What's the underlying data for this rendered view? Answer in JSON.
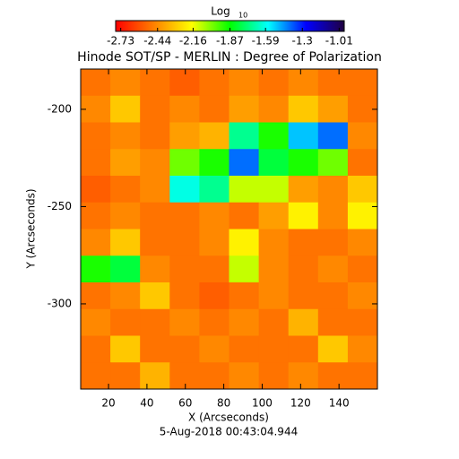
{
  "chart_data": {
    "type": "heatmap",
    "title": "Hinode SOT/SP - MERLIN : Degree of Polarization",
    "x_label": "X (Arcseconds)",
    "y_label": "Y (Arcseconds)",
    "footer": "5-Aug-2018 00:43:04.944",
    "colorbar_title": "Log",
    "colorbar_title_subscript": "10",
    "colormap": [
      "#ff0000",
      "#ff8000",
      "#ffff00",
      "#00ff00",
      "#00ffff",
      "#0000ff",
      "#200040"
    ],
    "clim": [
      -2.77,
      -0.97
    ],
    "cticks": [
      -2.73,
      -2.44,
      -2.16,
      -1.87,
      -1.59,
      -1.3,
      -1.01
    ],
    "xlim": [
      5.5,
      160
    ],
    "xticks": [
      20,
      40,
      60,
      80,
      100,
      120,
      140
    ],
    "ylim": [
      -343.8,
      -179.3
    ],
    "yticks": [
      -200,
      -250,
      -300
    ],
    "z": [
      [
        -2.5,
        -2.45,
        -2.5,
        -2.55,
        -2.5,
        -2.45,
        -2.5,
        -2.45,
        -2.5,
        -2.5
      ],
      [
        -2.45,
        -2.3,
        -2.5,
        -2.45,
        -2.5,
        -2.4,
        -2.45,
        -2.3,
        -2.4,
        -2.5
      ],
      [
        -2.5,
        -2.45,
        -2.5,
        -2.4,
        -2.35,
        -1.7,
        -1.9,
        -1.5,
        -1.4,
        -2.45
      ],
      [
        -2.5,
        -2.4,
        -2.45,
        -2.0,
        -1.9,
        -1.4,
        -1.8,
        -1.9,
        -2.0,
        -2.5
      ],
      [
        -2.55,
        -2.5,
        -2.45,
        -1.6,
        -1.7,
        -2.1,
        -2.1,
        -2.4,
        -2.45,
        -2.3
      ],
      [
        -2.5,
        -2.45,
        -2.5,
        -2.5,
        -2.45,
        -2.5,
        -2.4,
        -2.2,
        -2.45,
        -2.2
      ],
      [
        -2.45,
        -2.3,
        -2.5,
        -2.5,
        -2.45,
        -2.2,
        -2.45,
        -2.5,
        -2.5,
        -2.45
      ],
      [
        -1.9,
        -1.8,
        -2.45,
        -2.5,
        -2.5,
        -2.1,
        -2.45,
        -2.5,
        -2.45,
        -2.5
      ],
      [
        -2.5,
        -2.45,
        -2.3,
        -2.5,
        -2.55,
        -2.5,
        -2.45,
        -2.5,
        -2.5,
        -2.45
      ],
      [
        -2.45,
        -2.5,
        -2.5,
        -2.45,
        -2.5,
        -2.45,
        -2.5,
        -2.35,
        -2.5,
        -2.5
      ],
      [
        -2.5,
        -2.3,
        -2.5,
        -2.5,
        -2.45,
        -2.5,
        -2.5,
        -2.5,
        -2.3,
        -2.45
      ],
      [
        -2.5,
        -2.5,
        -2.35,
        -2.5,
        -2.5,
        -2.45,
        -2.5,
        -2.45,
        -2.5,
        -2.5
      ]
    ]
  }
}
